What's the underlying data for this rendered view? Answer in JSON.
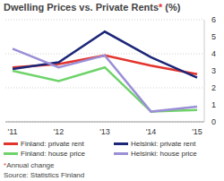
{
  "chart_data": {
    "type": "line",
    "title": "Dwelling Prices vs. Private Rents* (%)",
    "categories": [
      "'11",
      "'12",
      "'13",
      "'14",
      "'15"
    ],
    "series": [
      {
        "name": "Finland: private rent",
        "color": "#e3342b",
        "values": [
          3.2,
          3.4,
          3.9,
          3.3,
          2.8
        ]
      },
      {
        "name": "Helsinki: private rent",
        "color": "#1c2677",
        "values": [
          3.1,
          3.5,
          5.3,
          3.8,
          2.6
        ]
      },
      {
        "name": "Finland: house price",
        "color": "#6fd36a",
        "values": [
          3.0,
          2.4,
          3.2,
          0.6,
          0.7
        ]
      },
      {
        "name": "Helsinki: house price",
        "color": "#9b8fd6",
        "values": [
          4.3,
          3.2,
          3.9,
          0.6,
          0.9
        ]
      }
    ],
    "ylim": [
      0,
      6
    ],
    "yticks": [
      0,
      1,
      2,
      3,
      4,
      5,
      6
    ],
    "grid": true,
    "legend": "bottom",
    "annotations": [
      "*Annual change",
      "Source: Statistics Finland"
    ]
  }
}
